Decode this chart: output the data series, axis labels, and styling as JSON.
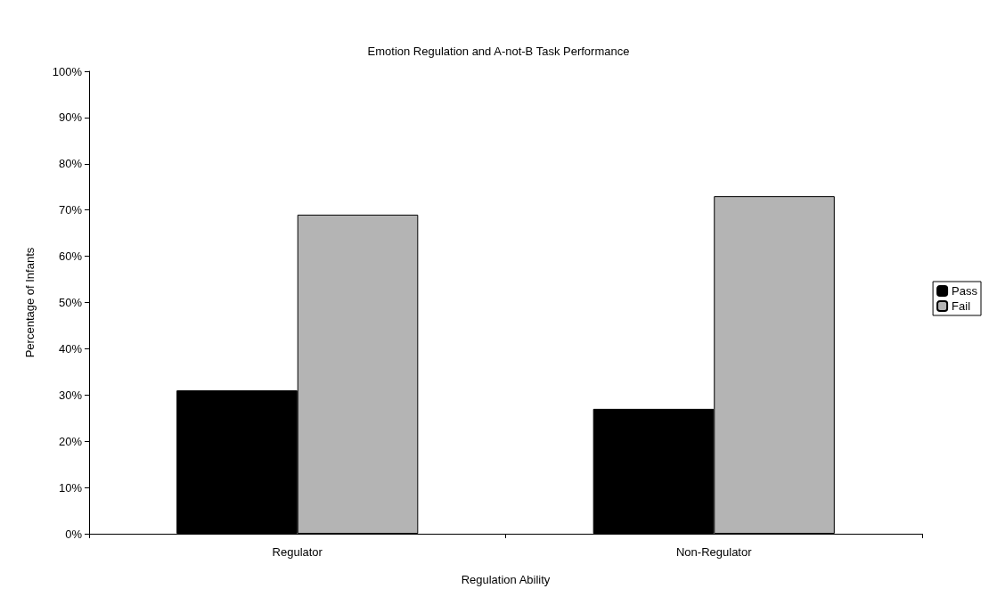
{
  "chart_data": {
    "type": "bar",
    "title": "Emotion Regulation and A-not-B Task Performance",
    "xlabel": "Regulation Ability",
    "ylabel": "Percentage of Infants",
    "categories": [
      "Regulator",
      "Non-Regulator"
    ],
    "series": [
      {
        "name": "Pass",
        "color": "#000000",
        "values": [
          31,
          27
        ]
      },
      {
        "name": "Fail",
        "color": "#b4b4b4",
        "values": [
          69,
          73
        ]
      }
    ],
    "ylim": [
      0,
      100
    ],
    "yticks": [
      {
        "value": 0,
        "label": "0%"
      },
      {
        "value": 10,
        "label": "10%"
      },
      {
        "value": 20,
        "label": "20%"
      },
      {
        "value": 30,
        "label": "30%"
      },
      {
        "value": 40,
        "label": "40%"
      },
      {
        "value": 50,
        "label": "50%"
      },
      {
        "value": 60,
        "label": "60%"
      },
      {
        "value": 70,
        "label": "70%"
      },
      {
        "value": 80,
        "label": "80%"
      },
      {
        "value": 90,
        "label": "90%"
      },
      {
        "value": 100,
        "label": "100%"
      }
    ],
    "grid": false,
    "legend": "right"
  }
}
